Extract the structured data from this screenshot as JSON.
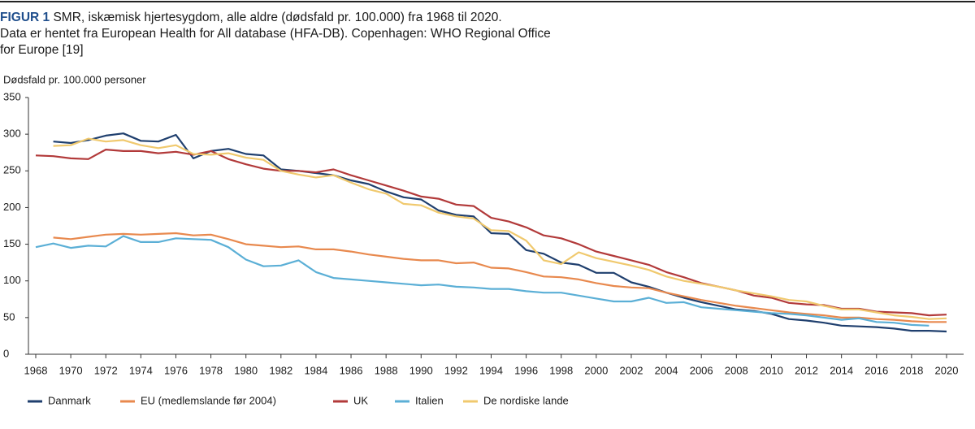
{
  "chart_data": {
    "type": "line",
    "figure_label": "FIGUR 1",
    "title": "SMR, iskæmisk hjertesygdom, alle aldre (dødsfald pr. 100.000) fra 1968 til 2020.",
    "subtitle": "Data er hentet fra European Health for All database (HFA-DB). Copenhagen: WHO Regional Office for Europe [19]",
    "y_label": "Dødsfald pr. 100.000 personer",
    "x": [
      1968,
      1969,
      1970,
      1971,
      1972,
      1973,
      1974,
      1975,
      1976,
      1977,
      1978,
      1979,
      1980,
      1981,
      1982,
      1983,
      1984,
      1985,
      1986,
      1987,
      1988,
      1989,
      1990,
      1991,
      1992,
      1993,
      1994,
      1995,
      1996,
      1997,
      1998,
      1999,
      2000,
      2001,
      2002,
      2003,
      2004,
      2005,
      2006,
      2007,
      2008,
      2009,
      2010,
      2011,
      2012,
      2013,
      2014,
      2015,
      2016,
      2017,
      2018,
      2019,
      2020
    ],
    "xlim": [
      1968,
      2020
    ],
    "xticks": [
      1968,
      1970,
      1972,
      1974,
      1976,
      1978,
      1980,
      1982,
      1984,
      1986,
      1988,
      1990,
      1992,
      1994,
      1996,
      1998,
      2000,
      2002,
      2004,
      2006,
      2008,
      2010,
      2012,
      2014,
      2016,
      2018,
      2020
    ],
    "ylim": [
      0,
      350
    ],
    "yticks": [
      0,
      50,
      100,
      150,
      200,
      250,
      300,
      350
    ],
    "grid": false,
    "legend": "bottom",
    "series": [
      {
        "name": "Danmark",
        "color": "#1f3f6e",
        "values": [
          null,
          290,
          288,
          292,
          298,
          301,
          291,
          290,
          299,
          267,
          277,
          280,
          273,
          271,
          252,
          250,
          247,
          244,
          237,
          232,
          222,
          214,
          211,
          196,
          190,
          188,
          165,
          164,
          142,
          137,
          125,
          122,
          111,
          111,
          98,
          92,
          84,
          77,
          71,
          66,
          61,
          59,
          55,
          48,
          46,
          43,
          39,
          38,
          37,
          35,
          32,
          32,
          31
        ]
      },
      {
        "name": "EU (medlemslande før 2004)",
        "color": "#e8894e",
        "values": [
          null,
          159,
          157,
          160,
          163,
          164,
          163,
          164,
          165,
          162,
          163,
          157,
          150,
          148,
          146,
          147,
          143,
          143,
          140,
          136,
          133,
          130,
          128,
          128,
          124,
          125,
          118,
          117,
          112,
          106,
          105,
          102,
          97,
          93,
          91,
          90,
          84,
          79,
          74,
          70,
          66,
          63,
          60,
          57,
          55,
          53,
          50,
          50,
          48,
          47,
          45,
          44,
          44
        ]
      },
      {
        "name": "UK",
        "color": "#b23a3a",
        "values": [
          271,
          270,
          267,
          266,
          279,
          277,
          277,
          274,
          276,
          272,
          277,
          266,
          259,
          253,
          250,
          250,
          248,
          252,
          244,
          237,
          230,
          223,
          215,
          212,
          204,
          202,
          186,
          181,
          173,
          162,
          158,
          150,
          140,
          134,
          128,
          122,
          112,
          105,
          97,
          92,
          87,
          80,
          77,
          70,
          68,
          67,
          62,
          62,
          58,
          57,
          56,
          53,
          54
        ]
      },
      {
        "name": "Italien",
        "color": "#5bafd6",
        "values": [
          146,
          151,
          145,
          148,
          147,
          161,
          153,
          153,
          158,
          157,
          156,
          146,
          129,
          120,
          121,
          128,
          112,
          104,
          102,
          100,
          98,
          96,
          94,
          95,
          92,
          91,
          89,
          89,
          86,
          84,
          84,
          80,
          76,
          72,
          72,
          77,
          70,
          71,
          64,
          62,
          60,
          58,
          56,
          55,
          53,
          50,
          47,
          49,
          44,
          43,
          40,
          39,
          null
        ]
      },
      {
        "name": "De nordiske lande",
        "color": "#f0c96e",
        "values": [
          null,
          284,
          285,
          294,
          290,
          292,
          285,
          281,
          285,
          273,
          272,
          274,
          268,
          265,
          250,
          245,
          241,
          244,
          234,
          225,
          219,
          205,
          203,
          193,
          188,
          185,
          169,
          168,
          155,
          128,
          123,
          139,
          131,
          126,
          121,
          115,
          106,
          100,
          96,
          92,
          87,
          83,
          79,
          74,
          72,
          66,
          61,
          61,
          57,
          53,
          51,
          48,
          49
        ]
      }
    ]
  }
}
